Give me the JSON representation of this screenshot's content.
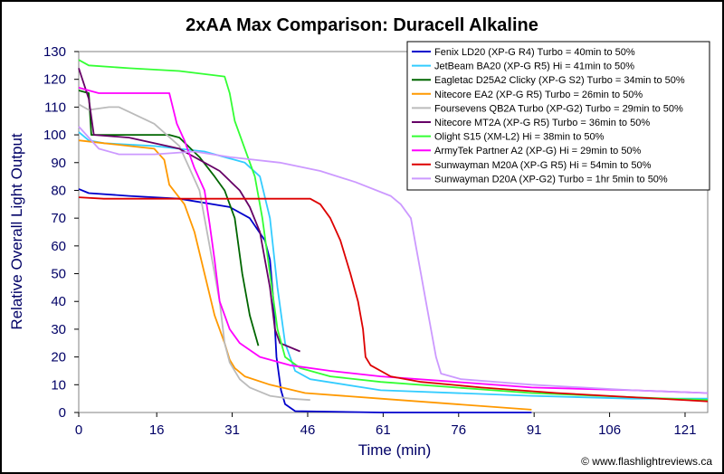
{
  "chart_data": {
    "type": "line",
    "title": "2xAA Max Comparison: Duracell Alkaline",
    "xlabel": "Time (min)",
    "ylabel": "Relative Overall Light Output",
    "xlim": [
      0,
      125
    ],
    "ylim": [
      0,
      130
    ],
    "x_ticks": [
      "0",
      "16",
      "31",
      "46",
      "61",
      "76",
      "91",
      "106",
      "121"
    ],
    "x_tick_values": [
      0,
      15.5,
      30.5,
      45.5,
      60.5,
      75.5,
      90.5,
      105.5,
      120.5
    ],
    "y_ticks": [
      "0",
      "10",
      "20",
      "30",
      "40",
      "50",
      "60",
      "70",
      "80",
      "90",
      "100",
      "110",
      "120",
      "130"
    ],
    "y_tick_values": [
      0,
      10,
      20,
      30,
      40,
      50,
      60,
      70,
      80,
      90,
      100,
      110,
      120,
      130
    ],
    "grid": false,
    "legend_position": "top-right",
    "credit": "© www.flashlightreviews.ca",
    "series": [
      {
        "name": "Fenix LD20 (XP-G R4) Turbo = 40min to 50%",
        "color": "#0000cc",
        "points": [
          [
            0,
            80.5
          ],
          [
            2,
            79
          ],
          [
            10,
            78
          ],
          [
            20,
            77
          ],
          [
            30,
            74
          ],
          [
            34,
            70
          ],
          [
            37,
            62
          ],
          [
            38,
            55
          ],
          [
            38.7,
            40
          ],
          [
            39.3,
            20
          ],
          [
            40.2,
            8
          ],
          [
            41,
            3
          ],
          [
            43,
            0.5
          ],
          [
            60,
            0
          ],
          [
            90,
            0
          ]
        ]
      },
      {
        "name": "JetBeam BA20 (XP-G R5) Hi = 41min to 50%",
        "color": "#33ccff",
        "points": [
          [
            0,
            101
          ],
          [
            2,
            98
          ],
          [
            5,
            97
          ],
          [
            15,
            96
          ],
          [
            25,
            94
          ],
          [
            33,
            90
          ],
          [
            36,
            85
          ],
          [
            38,
            70
          ],
          [
            39.5,
            45
          ],
          [
            41,
            25
          ],
          [
            43,
            15
          ],
          [
            46,
            12
          ],
          [
            60,
            8
          ],
          [
            90,
            6
          ],
          [
            110,
            5
          ],
          [
            125,
            5
          ]
        ]
      },
      {
        "name": "Eagletac D25A2 Clicky (XP-G S2) Turbo = 34min to 50%",
        "color": "#006600",
        "points": [
          [
            0,
            116
          ],
          [
            2,
            115
          ],
          [
            2.5,
            100
          ],
          [
            10,
            100
          ],
          [
            18,
            100
          ],
          [
            20,
            99
          ],
          [
            24,
            92
          ],
          [
            27,
            85
          ],
          [
            29,
            80
          ],
          [
            31,
            70
          ],
          [
            32.5,
            50
          ],
          [
            34,
            35
          ],
          [
            35.7,
            24
          ]
        ]
      },
      {
        "name": "Nitecore EA2 (XP-G R5) Turbo = 26min to 50%",
        "color": "#ff9900",
        "points": [
          [
            0,
            98
          ],
          [
            5,
            97
          ],
          [
            15,
            95
          ],
          [
            17,
            91
          ],
          [
            18,
            82
          ],
          [
            21,
            75
          ],
          [
            23,
            65
          ],
          [
            25,
            50
          ],
          [
            27,
            35
          ],
          [
            29,
            25
          ],
          [
            30,
            19
          ],
          [
            31,
            16
          ],
          [
            33,
            13
          ],
          [
            38,
            10
          ],
          [
            45,
            7
          ],
          [
            60,
            5
          ],
          [
            75,
            3
          ],
          [
            90,
            1
          ]
        ]
      },
      {
        "name": "Foursevens QB2A Turbo (XP-G2) Turbo = 29min to 50%",
        "color": "#bbbbbb",
        "points": [
          [
            0,
            111
          ],
          [
            2,
            109
          ],
          [
            6,
            110
          ],
          [
            8,
            110
          ],
          [
            15,
            104
          ],
          [
            20,
            96
          ],
          [
            22,
            88
          ],
          [
            24,
            80
          ],
          [
            26,
            60
          ],
          [
            28,
            40
          ],
          [
            29,
            25
          ],
          [
            30,
            18
          ],
          [
            32,
            12
          ],
          [
            34,
            9
          ],
          [
            38,
            6
          ],
          [
            42,
            5
          ],
          [
            46,
            4.5
          ]
        ]
      },
      {
        "name": "Nitecore MT2A (XP-G R5) Turbo = 36min to 50%",
        "color": "#660066",
        "points": [
          [
            0,
            124
          ],
          [
            2,
            113
          ],
          [
            3,
            100
          ],
          [
            10,
            99
          ],
          [
            20,
            95
          ],
          [
            28,
            87
          ],
          [
            32,
            80
          ],
          [
            34,
            74
          ],
          [
            36,
            65
          ],
          [
            38,
            45
          ],
          [
            39,
            30
          ],
          [
            40,
            25
          ],
          [
            44,
            22
          ]
        ]
      },
      {
        "name": "Olight S15 (XM-L2) Hi = 38min to 50%",
        "color": "#33ff33",
        "points": [
          [
            0,
            127
          ],
          [
            2,
            125
          ],
          [
            10,
            124
          ],
          [
            20,
            123
          ],
          [
            29,
            121
          ],
          [
            30,
            115
          ],
          [
            31,
            105
          ],
          [
            33,
            95
          ],
          [
            35,
            85
          ],
          [
            36.5,
            70
          ],
          [
            38,
            50
          ],
          [
            39.5,
            30
          ],
          [
            41,
            20
          ],
          [
            44,
            16
          ],
          [
            50,
            13
          ],
          [
            60,
            11
          ],
          [
            75,
            9
          ],
          [
            90,
            7
          ],
          [
            110,
            5.5
          ],
          [
            125,
            4.5
          ]
        ]
      },
      {
        "name": "ArmyTek Partner A2 (XP-G) Hi = 29min to 50%",
        "color": "#ff00ff",
        "points": [
          [
            0,
            117
          ],
          [
            2,
            116
          ],
          [
            4,
            115
          ],
          [
            10,
            115
          ],
          [
            18,
            115
          ],
          [
            19.5,
            104
          ],
          [
            21,
            98
          ],
          [
            23,
            88
          ],
          [
            25,
            80
          ],
          [
            26,
            68
          ],
          [
            27,
            55
          ],
          [
            28,
            40
          ],
          [
            30,
            30
          ],
          [
            32,
            25
          ],
          [
            36,
            20
          ],
          [
            42,
            17
          ],
          [
            50,
            15
          ],
          [
            60,
            13
          ],
          [
            75,
            11
          ],
          [
            90,
            9
          ],
          [
            110,
            8
          ],
          [
            125,
            7
          ]
        ]
      },
      {
        "name": "Sunwayman M20A (XP-G R5) Hi = 54min to 50%",
        "color": "#dd0000",
        "points": [
          [
            0,
            77.5
          ],
          [
            5,
            77
          ],
          [
            20,
            77
          ],
          [
            40,
            77
          ],
          [
            46,
            77
          ],
          [
            48,
            75
          ],
          [
            50,
            70
          ],
          [
            52,
            62
          ],
          [
            54,
            50
          ],
          [
            55.5,
            40
          ],
          [
            56.5,
            30
          ],
          [
            57,
            20
          ],
          [
            58,
            17
          ],
          [
            62,
            13
          ],
          [
            68,
            11
          ],
          [
            80,
            9
          ],
          [
            95,
            7
          ],
          [
            110,
            5.5
          ],
          [
            125,
            4
          ]
        ]
      },
      {
        "name": "Sunwayman D20A (XP-G2) Turbo = 1hr 5min to 50%",
        "color": "#cc99ff",
        "points": [
          [
            0,
            103
          ],
          [
            1,
            101
          ],
          [
            2,
            99
          ],
          [
            4,
            95
          ],
          [
            8,
            93
          ],
          [
            15,
            93
          ],
          [
            23,
            94
          ],
          [
            30,
            92
          ],
          [
            40,
            90
          ],
          [
            48,
            87
          ],
          [
            55,
            83
          ],
          [
            62,
            78
          ],
          [
            64,
            75
          ],
          [
            66,
            70
          ],
          [
            67,
            60
          ],
          [
            68,
            50
          ],
          [
            69,
            40
          ],
          [
            70,
            30
          ],
          [
            71,
            20
          ],
          [
            72,
            14
          ],
          [
            76,
            12
          ],
          [
            90,
            10
          ],
          [
            110,
            8
          ],
          [
            125,
            7
          ]
        ]
      }
    ]
  }
}
